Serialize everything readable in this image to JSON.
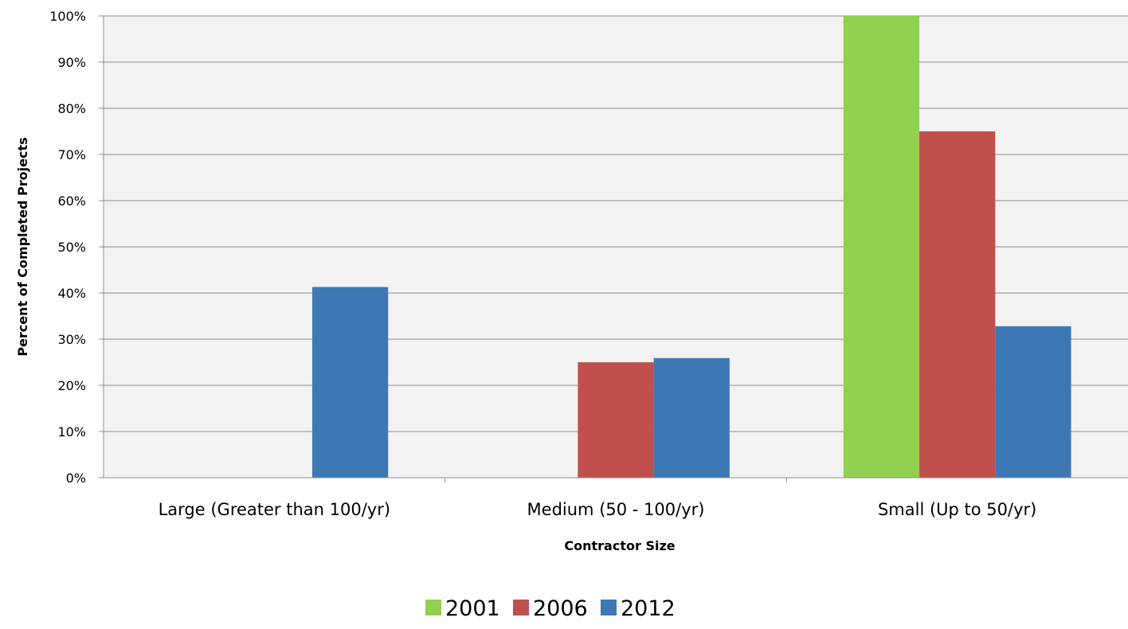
{
  "chart_data": {
    "type": "bar",
    "title": "",
    "xlabel": "Contractor Size",
    "ylabel": "Percent of Completed Projects",
    "categories": [
      "Large (Greater than 100/yr)",
      "Medium (50 - 100/yr)",
      "Small (Up to 50/yr)"
    ],
    "series": [
      {
        "name": "2001",
        "color": "#92d050",
        "values": [
          0,
          0,
          100
        ]
      },
      {
        "name": "2006",
        "color": "#c0504d",
        "values": [
          0,
          25,
          75
        ]
      },
      {
        "name": "2012",
        "color": "#3d78b4",
        "values": [
          41.3,
          25.9,
          32.8
        ]
      }
    ],
    "ylim": [
      0,
      100
    ],
    "yticks": [
      "0%",
      "10%",
      "20%",
      "30%",
      "40%",
      "50%",
      "60%",
      "70%",
      "80%",
      "90%",
      "100%"
    ],
    "grid": true,
    "legend_position": "bottom"
  }
}
